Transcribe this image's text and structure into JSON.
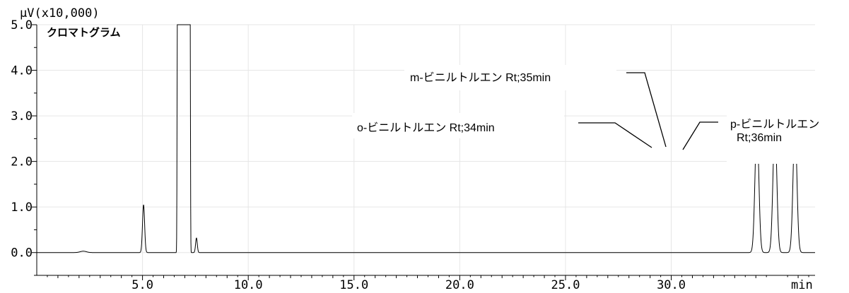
{
  "chart_data": {
    "type": "line",
    "title": "クロマトグラム",
    "y_unit_label": "μV(x10,000)",
    "x_unit_label": "min",
    "xlim": [
      0,
      36.8
    ],
    "ylim": [
      -0.5,
      5.0
    ],
    "y_ticks": [
      "0.0",
      "1.0",
      "2.0",
      "3.0",
      "4.0",
      "5.0"
    ],
    "x_ticks": [
      "5.0",
      "10.0",
      "15.0",
      "20.0",
      "25.0",
      "30.0"
    ],
    "grid": true,
    "series": [
      {
        "peaks": [
          {
            "rt": 2.2,
            "height": 0.03,
            "width": 0.15
          },
          {
            "rt": 5.05,
            "height": 1.05,
            "width": 0.05
          },
          {
            "rt": 6.95,
            "height": 5.0,
            "width": 0.3,
            "offscale": true
          },
          {
            "rt": 7.55,
            "height": 0.32,
            "width": 0.04
          },
          {
            "rt": 34.05,
            "height": 2.0,
            "width": 0.09,
            "offscale": true
          },
          {
            "rt": 34.9,
            "height": 2.0,
            "width": 0.09,
            "offscale": true
          },
          {
            "rt": 35.85,
            "height": 2.0,
            "width": 0.09,
            "offscale": true
          }
        ]
      }
    ],
    "annotations": [
      {
        "text": "o-ビニルトルエン  Rt;34min"
      },
      {
        "text": "m-ビニルトルエン  Rt;35min"
      },
      {
        "text": "p-ビニルトルエン"
      },
      {
        "text": "Rt;36min"
      }
    ]
  }
}
